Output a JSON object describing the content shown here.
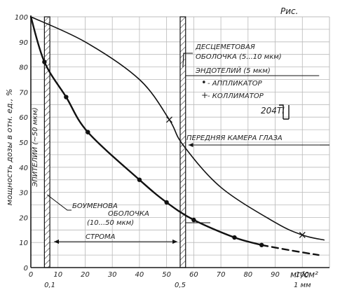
{
  "chart_data": {
    "type": "line",
    "corner_label": "Рис.",
    "ylabel": "мощность дозы в отн. ед., %",
    "xlabel": "мг/см²",
    "ylim": [
      0,
      100
    ],
    "xlim": [
      0,
      110
    ],
    "y_ticks": [
      0,
      10,
      20,
      30,
      40,
      50,
      60,
      70,
      80,
      90,
      100
    ],
    "x_ticks": [
      0,
      10,
      20,
      30,
      40,
      50,
      60,
      70,
      80,
      90,
      100
    ],
    "x_depth_labels": [
      {
        "x": 7,
        "label": "0,1"
      },
      {
        "x": 55,
        "label": "0,5"
      },
      {
        "x": 100,
        "label": "1 мм"
      }
    ],
    "series": [
      {
        "marker": "dot",
        "values": [
          [
            0,
            100
          ],
          [
            5,
            82
          ],
          [
            13,
            68
          ],
          [
            21,
            54
          ],
          [
            40,
            35
          ],
          [
            50,
            26
          ],
          [
            60,
            19
          ],
          [
            75,
            12
          ],
          [
            85,
            9
          ]
        ],
        "dashed_from": [
          [
            85,
            9
          ],
          [
            95,
            7
          ],
          [
            106,
            5
          ]
        ]
      },
      {
        "marker": "cross",
        "values": [
          [
            0,
            100
          ],
          [
            20,
            90
          ],
          [
            40,
            75
          ],
          [
            51,
            59
          ],
          [
            56,
            49
          ],
          [
            70,
            32
          ],
          [
            90,
            18
          ],
          [
            100,
            13
          ],
          [
            108,
            11
          ]
        ]
      }
    ],
    "bands": [
      {
        "x_start": 5,
        "x_end": 7,
        "label": "ЭПИТЕЛИЙ (~50 мкм)"
      },
      {
        "x_start": 55,
        "x_end": 57,
        "label": "ЭНДОТЕЛИЙ (5 мкм)"
      }
    ],
    "annotations": [
      {
        "text": "ДЕСЦЕМЕТОВАЯ"
      },
      {
        "text": "ОБОЛОЧКА (5...10 мкм)"
      },
      {
        "text": "ЭНДОТЕЛИЙ (5 мкм)"
      },
      {
        "text": "ПЕРЕДНЯЯ КАМЕРА ГЛАЗА"
      },
      {
        "text": "БОУМЕНОВА"
      },
      {
        "text": "ОБОЛОЧКА"
      },
      {
        "text": "(10...50 мкм)"
      },
      {
        "text": "СТРОМА"
      }
    ],
    "legend": [
      {
        "symbol": "•",
        "text": "- АППЛИКАТОР"
      },
      {
        "symbol": "+",
        "text": "- КОЛЛИМАТОР"
      }
    ],
    "isotope": "204Tl",
    "legend_placement": "right"
  }
}
